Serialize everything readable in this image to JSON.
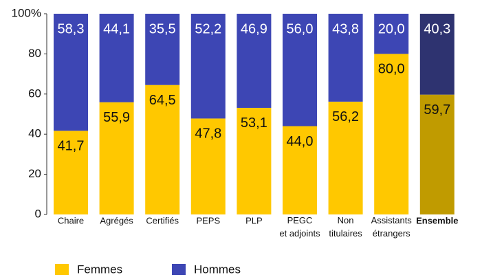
{
  "chart_data": {
    "type": "stacked_bar_100",
    "categories": [
      "Chaire",
      "Agrégés",
      "Certifiés",
      "PEPS",
      "PLP",
      "PEGC\net adjoints",
      "Non\ntitulaires",
      "Assistants\nétrangers",
      "Ensemble"
    ],
    "series": [
      {
        "name": "Femmes",
        "color": "#ffc800",
        "colors": [
          "#ffc800",
          "#ffc800",
          "#ffc800",
          "#ffc800",
          "#ffc800",
          "#ffc800",
          "#ffc800",
          "#ffc800",
          "#c09b00"
        ],
        "values": [
          41.7,
          55.9,
          64.5,
          47.8,
          53.1,
          44.0,
          56.2,
          80.0,
          59.7
        ],
        "value_labels": [
          "41,7",
          "55,9",
          "64,5",
          "47,8",
          "53,1",
          "44,0",
          "56,2",
          "80,0",
          "59,7"
        ]
      },
      {
        "name": "Hommes",
        "color": "#3d46b4",
        "colors": [
          "#3d46b4",
          "#3d46b4",
          "#3d46b4",
          "#3d46b4",
          "#3d46b4",
          "#3d46b4",
          "#3d46b4",
          "#3d46b4",
          "#2e3370"
        ],
        "values": [
          58.3,
          44.1,
          35.5,
          52.2,
          46.9,
          56.0,
          43.8,
          20.0,
          40.3
        ],
        "value_labels": [
          "58,3",
          "44,1",
          "35,5",
          "52,2",
          "46,9",
          "56,0",
          "43,8",
          "20,0",
          "40,3"
        ]
      }
    ],
    "ylim": [
      0,
      100
    ],
    "yticks": [
      0,
      20,
      40,
      60,
      80,
      {
        "value": 100,
        "label": "100%"
      }
    ]
  }
}
